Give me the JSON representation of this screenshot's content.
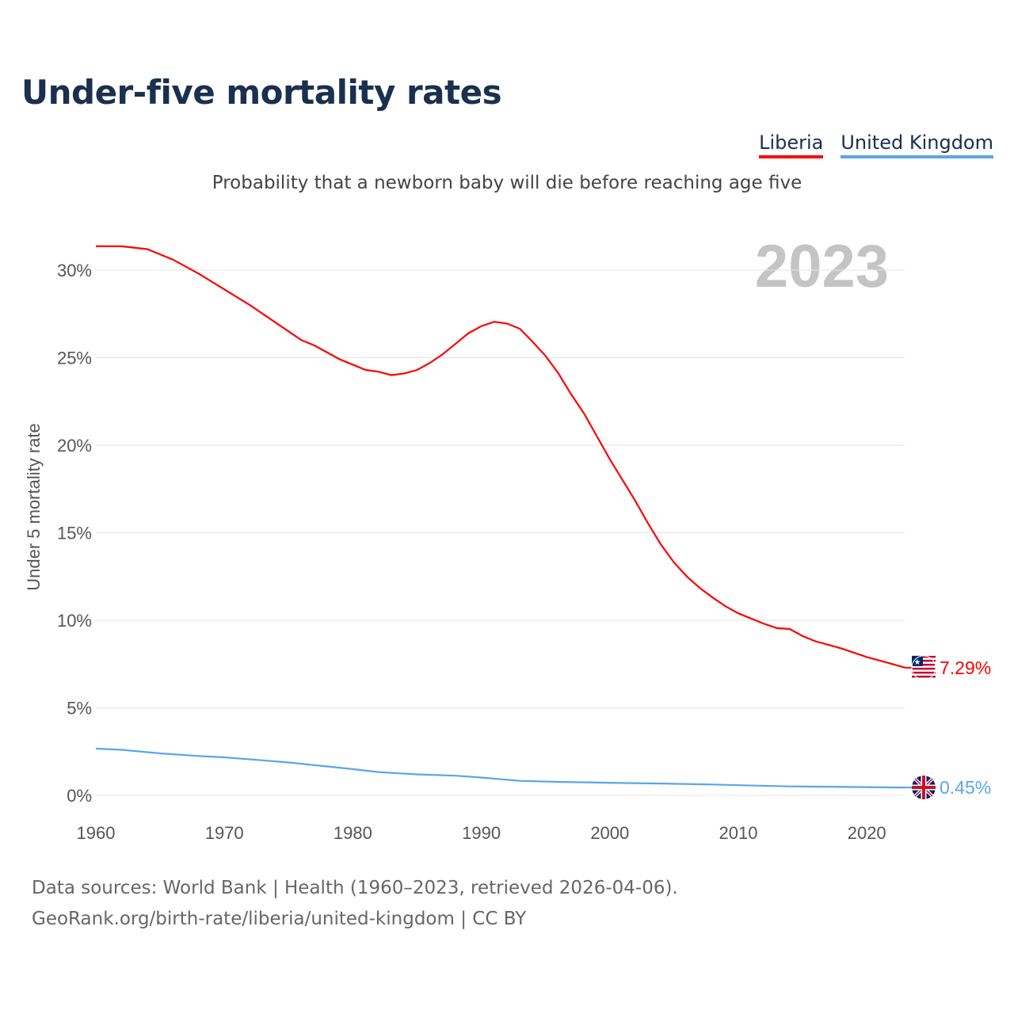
{
  "title": "Under-five mortality rates",
  "subtitle": "Probability that a newborn baby will die before reaching age five",
  "year_label": "2023",
  "source_line1": "Data sources: World Bank | Health (1960–2023, retrieved 2026-04-06).",
  "source_line2": "GeoRank.org/birth-rate/liberia/united-kingdom | CC BY",
  "chart_data": {
    "type": "line",
    "title": "Under-five mortality rates",
    "ylabel": "Under 5 mortality rate",
    "xlabel": "",
    "xlim": [
      1960,
      2023
    ],
    "ylim": [
      0,
      32
    ],
    "xticks": [
      "1960",
      "1970",
      "1980",
      "1990",
      "2000",
      "2010",
      "2020"
    ],
    "yticks": [
      "0%",
      "5%",
      "10%",
      "15%",
      "20%",
      "25%",
      "30%"
    ],
    "grid": true,
    "legend_position": "top-right",
    "series": [
      {
        "name": "Liberia",
        "color": "#ff0000",
        "end_label": "7.29%",
        "x": [
          1960,
          1962,
          1964,
          1965,
          1966,
          1968,
          1970,
          1972,
          1973,
          1974,
          1975,
          1976,
          1977,
          1978,
          1979,
          1980,
          1981,
          1982,
          1983,
          1984,
          1985,
          1986,
          1987,
          1988,
          1989,
          1990,
          1991,
          1992,
          1993,
          1994,
          1995,
          1996,
          1997,
          1998,
          1999,
          2000,
          2001,
          2002,
          2003,
          2004,
          2005,
          2006,
          2007,
          2008,
          2009,
          2010,
          2011,
          2012,
          2013,
          2014,
          2015,
          2016,
          2017,
          2018,
          2019,
          2020,
          2021,
          2022,
          2023
        ],
        "y": [
          31.36,
          31.36,
          31.2,
          30.9,
          30.6,
          29.8,
          28.9,
          28.0,
          27.5,
          27.0,
          26.5,
          26.0,
          25.7,
          25.3,
          24.9,
          24.6,
          24.3,
          24.2,
          24.0,
          24.1,
          24.3,
          24.7,
          25.2,
          25.8,
          26.4,
          26.8,
          27.05,
          26.95,
          26.65,
          25.9,
          25.1,
          24.1,
          22.9,
          21.8,
          20.5,
          19.2,
          18.0,
          16.8,
          15.5,
          14.3,
          13.3,
          12.5,
          11.85,
          11.3,
          10.8,
          10.4,
          10.1,
          9.8,
          9.55,
          9.5,
          9.1,
          8.8,
          8.6,
          8.4,
          8.15,
          7.9,
          7.7,
          7.5,
          7.29
        ]
      },
      {
        "name": "United Kingdom",
        "color": "#5aa5ea",
        "end_label": "0.45%",
        "x": [
          1960,
          1962,
          1965,
          1968,
          1970,
          1973,
          1975,
          1978,
          1980,
          1982,
          1985,
          1988,
          1990,
          1993,
          1996,
          2000,
          2005,
          2008,
          2010,
          2014,
          2020,
          2023
        ],
        "y": [
          2.67,
          2.6,
          2.4,
          2.25,
          2.17,
          2.0,
          1.88,
          1.65,
          1.5,
          1.33,
          1.2,
          1.12,
          1.02,
          0.83,
          0.77,
          0.72,
          0.66,
          0.62,
          0.58,
          0.51,
          0.47,
          0.45
        ]
      }
    ]
  }
}
